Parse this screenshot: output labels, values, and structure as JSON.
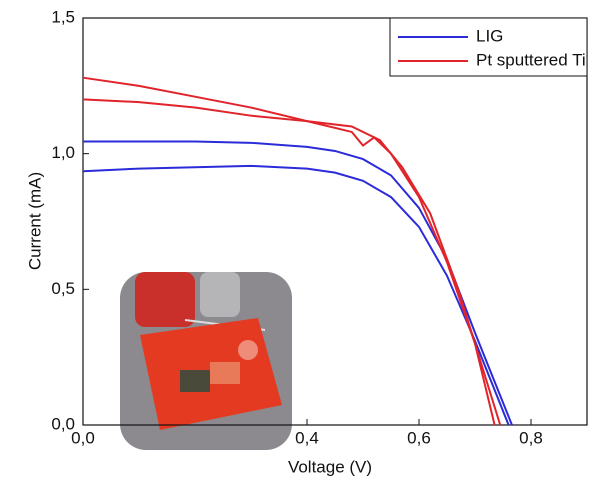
{
  "chart_data": {
    "type": "line",
    "x_label": "Voltage (V)",
    "y_label": "Current (mA)",
    "xlim": [
      0,
      0.9
    ],
    "ylim": [
      0,
      1.5
    ],
    "xticks": [
      {
        "value": 0,
        "label": "0,0"
      },
      {
        "value": 0.4,
        "label": "0,4"
      },
      {
        "value": 0.6,
        "label": "0,6"
      },
      {
        "value": 0.8,
        "label": "0,8"
      }
    ],
    "yticks": [
      {
        "value": 0,
        "label": "0,0"
      },
      {
        "value": 0.5,
        "label": "0,5"
      },
      {
        "value": 1.0,
        "label": "1,0"
      },
      {
        "value": 1.5,
        "label": "1,5"
      }
    ],
    "legend": "top-right",
    "series": [
      {
        "name": "LIG",
        "color": "#2b2bd9",
        "curves": [
          {
            "x": [
              0,
              0.1,
              0.2,
              0.3,
              0.4,
              0.45,
              0.5,
              0.55,
              0.6,
              0.65,
              0.7,
              0.766
            ],
            "values": [
              1.045,
              1.045,
              1.045,
              1.04,
              1.025,
              1.01,
              0.98,
              0.92,
              0.8,
              0.61,
              0.34,
              0
            ]
          },
          {
            "x": [
              0,
              0.1,
              0.2,
              0.3,
              0.4,
              0.45,
              0.5,
              0.55,
              0.6,
              0.65,
              0.7,
              0.76
            ],
            "values": [
              0.935,
              0.945,
              0.95,
              0.955,
              0.945,
              0.93,
              0.9,
              0.84,
              0.73,
              0.55,
              0.31,
              0
            ]
          }
        ]
      },
      {
        "name": "Pt sputtered Ti",
        "color": "#e0242a",
        "curves": [
          {
            "x": [
              0,
              0.1,
              0.2,
              0.3,
              0.4,
              0.48,
              0.5,
              0.52,
              0.55,
              0.6,
              0.65,
              0.7,
              0.735
            ],
            "values": [
              1.28,
              1.25,
              1.21,
              1.17,
              1.12,
              1.08,
              1.03,
              1.06,
              1.0,
              0.84,
              0.6,
              0.3,
              0
            ]
          },
          {
            "x": [
              0,
              0.1,
              0.2,
              0.3,
              0.4,
              0.48,
              0.53,
              0.57,
              0.62,
              0.67,
              0.7,
              0.745
            ],
            "values": [
              1.2,
              1.19,
              1.17,
              1.14,
              1.12,
              1.1,
              1.05,
              0.95,
              0.78,
              0.5,
              0.3,
              0
            ]
          }
        ]
      }
    ]
  }
}
